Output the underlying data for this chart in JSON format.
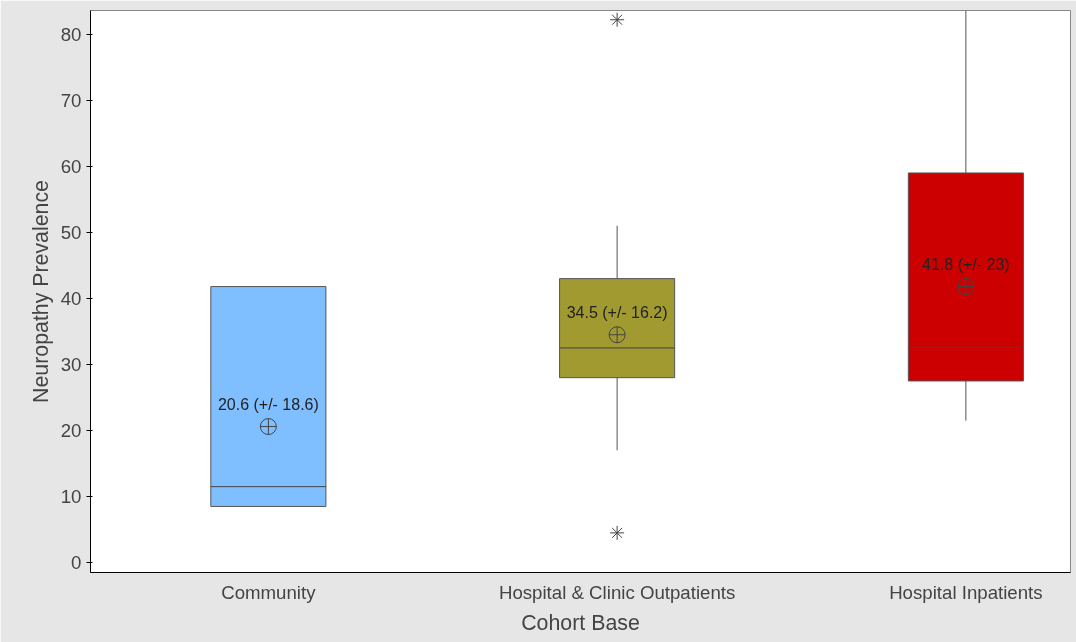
{
  "chart_data": {
    "type": "box",
    "xlabel": "Cohort Base",
    "ylabel": "Neuropathy Prevalence",
    "categories": [
      "Community",
      "Hospital & Clinic Outpatients",
      "Hospital Inpatients"
    ],
    "colors": [
      "#80bfff",
      "#a09a30",
      "#cc0000"
    ],
    "boxes": [
      {
        "low": 8.5,
        "q1": 8.5,
        "median": 11.5,
        "q3": 41.8,
        "high": 41.8,
        "mean": 20.6
      },
      {
        "low": 17,
        "q1": 28,
        "median": 32.5,
        "q3": 43,
        "high": 51,
        "mean": 34.5,
        "outliers": [
          82.2,
          4.5
        ]
      },
      {
        "low": 21.5,
        "q1": 27.5,
        "median": 32.6,
        "q3": 59,
        "high": 83.6,
        "mean": 41.8
      }
    ],
    "annotations": [
      "20.6 (+/- 18.6)",
      "34.5 (+/- 16.2)",
      "41.8 (+/- 23)"
    ],
    "ylim": [
      -1.5,
      83.6
    ],
    "yticks": [
      0,
      10,
      20,
      30,
      40,
      50,
      60,
      70,
      80
    ],
    "grid": false
  }
}
